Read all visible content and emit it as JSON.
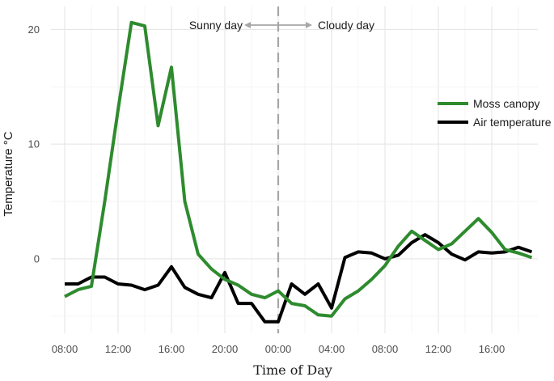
{
  "chart_data": {
    "type": "line",
    "title": "",
    "xlabel": "Time of Day",
    "ylabel": "Temperature °C",
    "x_hours_labels": [
      "08:00",
      "12:00",
      "16:00",
      "20:00",
      "00:00",
      "04:00",
      "08:00",
      "12:00",
      "16:00"
    ],
    "yticks": [
      0,
      10,
      20
    ],
    "ylim": [
      -6.5,
      22
    ],
    "grid": true,
    "legend_position": "right",
    "annotations": {
      "divider_label_left": "Sunny day",
      "divider_label_right": "Cloudy day"
    },
    "series": [
      {
        "name": "Moss canopy",
        "color": "#2e8b2e",
        "x": [
          "08:00",
          "09:00",
          "10:00",
          "11:00",
          "12:00",
          "13:00",
          "14:00",
          "15:00",
          "16:00",
          "17:00",
          "18:00",
          "19:00",
          "20:00",
          "21:00",
          "22:00",
          "23:00",
          "00:00",
          "01:00",
          "02:00",
          "03:00",
          "04:00",
          "05:00",
          "06:00",
          "07:00",
          "08:00",
          "09:00",
          "10:00",
          "11:00",
          "12:00",
          "13:00",
          "14:00",
          "15:00",
          "16:00",
          "17:00",
          "18:00",
          "19:00"
        ],
        "values": [
          -3.3,
          -2.7,
          -2.4,
          5.0,
          13.0,
          20.6,
          20.3,
          11.6,
          16.7,
          5.0,
          0.4,
          -0.9,
          -1.8,
          -2.3,
          -3.1,
          -3.4,
          -2.8,
          -3.9,
          -4.1,
          -4.9,
          -5.0,
          -3.5,
          -2.8,
          -1.8,
          -0.6,
          1.1,
          2.4,
          1.6,
          0.8,
          1.3,
          2.4,
          3.5,
          2.3,
          0.8,
          0.5,
          0.1
        ]
      },
      {
        "name": "Air temperature",
        "color": "#000000",
        "x": [
          "08:00",
          "09:00",
          "10:00",
          "11:00",
          "12:00",
          "13:00",
          "14:00",
          "15:00",
          "16:00",
          "17:00",
          "18:00",
          "19:00",
          "20:00",
          "21:00",
          "22:00",
          "23:00",
          "00:00",
          "01:00",
          "02:00",
          "03:00",
          "04:00",
          "05:00",
          "06:00",
          "07:00",
          "08:00",
          "09:00",
          "10:00",
          "11:00",
          "12:00",
          "13:00",
          "14:00",
          "15:00",
          "16:00",
          "17:00",
          "18:00",
          "19:00"
        ],
        "values": [
          -2.2,
          -2.2,
          -1.6,
          -1.6,
          -2.2,
          -2.3,
          -2.7,
          -2.3,
          -0.7,
          -2.5,
          -3.1,
          -3.4,
          -1.2,
          -3.9,
          -3.9,
          -5.5,
          -5.5,
          -2.2,
          -3.1,
          -2.2,
          -4.3,
          0.1,
          0.6,
          0.5,
          0.0,
          0.3,
          1.4,
          2.1,
          1.4,
          0.4,
          -0.1,
          0.6,
          0.5,
          0.6,
          1.0,
          0.6
        ]
      }
    ]
  }
}
